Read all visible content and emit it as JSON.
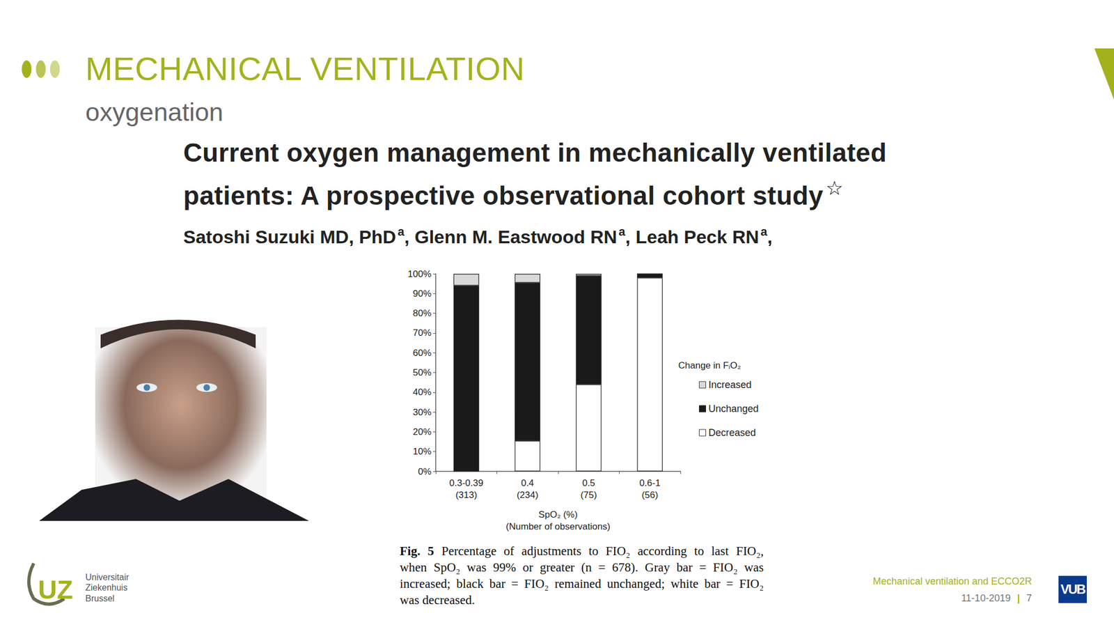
{
  "slide": {
    "title": "MECHANICAL VENTILATION",
    "subtitle": "oxygenation",
    "paper": {
      "title_lines": [
        "Current oxygen management in mechanically ventilated",
        "patients: A prospective observational cohort study"
      ],
      "title_mark": "☆",
      "authors": [
        {
          "name": "Satoshi Suzuki MD, PhD",
          "mark": "a",
          "sep": ","
        },
        {
          "name": "Glenn M. Eastwood RN",
          "mark": "a",
          "sep": ","
        },
        {
          "name": "Leah Peck RN",
          "mark": "a",
          "sep": ","
        }
      ]
    },
    "caption": {
      "label": "Fig. 5",
      "lines": [
        "Percentage of adjustments to FIO₂ according to last FIO₂,",
        "when SpO₂ was 99% or greater (n = 678). Gray bar = FIO₂ was",
        "increased; black bar = FIO₂ remained unchanged; white bar = FIO₂",
        "was decreased."
      ]
    },
    "footer": {
      "text": "Mechanical ventilation and ECCO2R",
      "date": "11-10-2019",
      "separator": "|",
      "page": 7
    },
    "logos": {
      "hospital_mark": "UZ",
      "hospital": [
        "Universitair",
        "Ziekenhuis",
        "Brussel"
      ],
      "university": "VUB"
    }
  },
  "chart_data": {
    "type": "bar",
    "stacked": true,
    "categories": [
      "0.3-0.39\n(313)",
      "0.4\n(234)",
      "0.5\n(75)",
      "0.6-1\n(56)"
    ],
    "x_label": "SpO₂ (%)\n(Number of observations)",
    "legend_title": "Change in FᵢO₂",
    "series": [
      {
        "name": "Increased",
        "color": "#d9d9d9",
        "values": [
          6,
          4.5,
          1,
          0
        ]
      },
      {
        "name": "Unchanged",
        "color": "#1a1a1a",
        "values": [
          94,
          80,
          55,
          2
        ]
      },
      {
        "name": "Decreased",
        "color": "#ffffff",
        "values": [
          0,
          15.5,
          44,
          98
        ]
      }
    ],
    "ylim": [
      0,
      100
    ],
    "yticks": [
      {
        "value": 0,
        "label": "0%"
      },
      {
        "value": 10,
        "label": "10%"
      },
      {
        "value": 20,
        "label": "20%"
      },
      {
        "value": 30,
        "label": "30%"
      },
      {
        "value": 40,
        "label": "40%"
      },
      {
        "value": 50,
        "label": "50%"
      },
      {
        "value": 60,
        "label": "60%"
      },
      {
        "value": 70,
        "label": "70%"
      },
      {
        "value": 80,
        "label": "80%"
      },
      {
        "value": 90,
        "label": "90%"
      },
      {
        "value": 100,
        "label": "100%"
      }
    ],
    "grid": false,
    "legend": "right"
  }
}
